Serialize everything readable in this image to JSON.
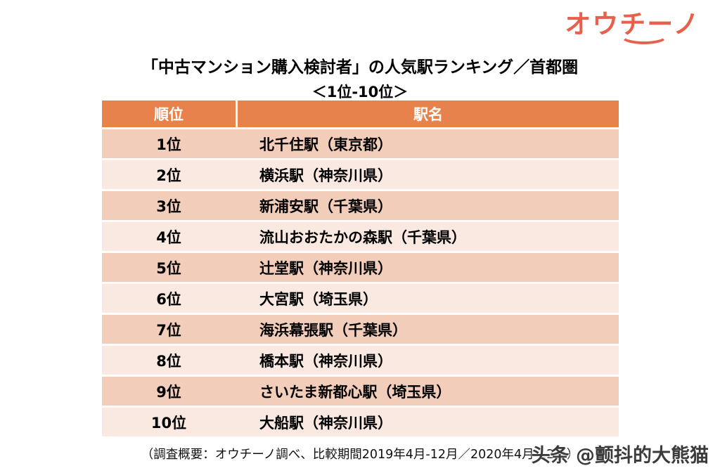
{
  "logo": {
    "text": "オウチーノ",
    "color": "#E8604C"
  },
  "title": {
    "line1": "「中古マンション購入検討者」の人気駅ランキング／首都圏",
    "line2": "＜1位-10位＞"
  },
  "chart_data": {
    "type": "table",
    "title": "「中古マンション購入検討者」の人気駅ランキング／首都圏 ＜1位-10位＞",
    "columns": [
      "順位",
      "駅名"
    ],
    "rows": [
      {
        "rank": "1位",
        "station": "北千住駅（東京都）"
      },
      {
        "rank": "2位",
        "station": "横浜駅（神奈川県）"
      },
      {
        "rank": "3位",
        "station": "新浦安駅（千葉県）"
      },
      {
        "rank": "4位",
        "station": "流山おおたかの森駅（千葉県）"
      },
      {
        "rank": "5位",
        "station": "辻堂駅（神奈川県）"
      },
      {
        "rank": "6位",
        "station": "大宮駅（埼玉県）"
      },
      {
        "rank": "7位",
        "station": "海浜幕張駅（千葉県）"
      },
      {
        "rank": "8位",
        "station": "橋本駅（神奈川県）"
      },
      {
        "rank": "9位",
        "station": "さいたま新都心駅（埼玉県）"
      },
      {
        "rank": "10位",
        "station": "大船駅（神奈川県）"
      }
    ]
  },
  "footer": {
    "note": "（調査概要：オウチーノ調べ、比較期間2019年4月-12月／2020年4月-12月）"
  },
  "watermark": {
    "text": "头条 @颤抖的大熊猫"
  },
  "colors": {
    "header_bg": "#E8824C",
    "row_dark": "#F2CDBA",
    "row_light": "#FAE9E0",
    "logo": "#E8604C"
  }
}
